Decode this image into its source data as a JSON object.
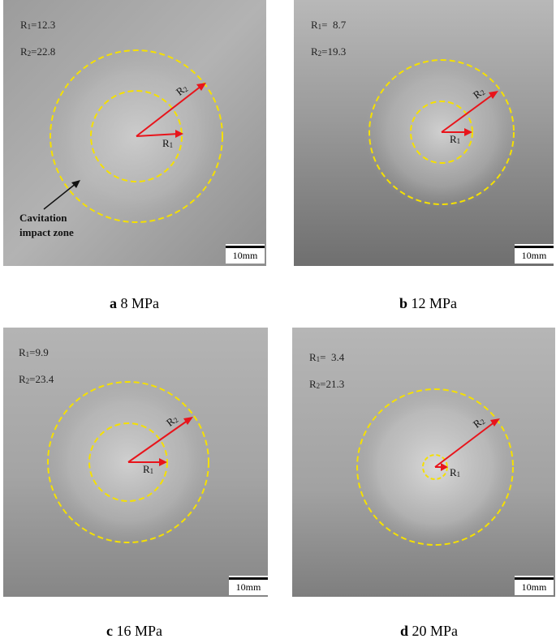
{
  "panels": [
    {
      "id": "a",
      "r1_label": "R",
      "r1_sub": "1",
      "r1_value": "=12.3",
      "r2_label": "R",
      "r2_sub": "2",
      "r2_value": "=22.8",
      "scale": "10mm",
      "caption_letter": "a",
      "caption_text": " 8 MPa",
      "arrow_r1": "R",
      "arrow_r1_sub": "1",
      "arrow_r2": "R",
      "arrow_r2_sub": "2",
      "zone_label_1": "Cavitation",
      "zone_label_2": "impact zone"
    },
    {
      "id": "b",
      "r1_label": "R",
      "r1_sub": "1",
      "r1_value": "=  8.7",
      "r2_label": "R",
      "r2_sub": "2",
      "r2_value": "=19.3",
      "scale": "10mm",
      "caption_letter": "b",
      "caption_text": " 12 MPa",
      "arrow_r1": "R",
      "arrow_r1_sub": "1",
      "arrow_r2": "R",
      "arrow_r2_sub": "2"
    },
    {
      "id": "c",
      "r1_label": "R",
      "r1_sub": "1",
      "r1_value": "=9.9",
      "r2_label": "R",
      "r2_sub": "2",
      "r2_value": "=23.4",
      "scale": "10mm",
      "caption_letter": "c",
      "caption_text": " 16 MPa",
      "arrow_r1": "R",
      "arrow_r1_sub": "1",
      "arrow_r2": "R",
      "arrow_r2_sub": "2"
    },
    {
      "id": "d",
      "r1_label": "R",
      "r1_sub": "1",
      "r1_value": "=  3.4",
      "r2_label": "R",
      "r2_sub": "2",
      "r2_value": "=21.3",
      "scale": "10mm",
      "caption_letter": "d",
      "caption_text": " 20 MPa",
      "arrow_r1": "R",
      "arrow_r1_sub": "1",
      "arrow_r2": "R",
      "arrow_r2_sub": "2"
    }
  ],
  "colors": {
    "circle": "#f5e000",
    "arrow": "#e8141b",
    "scale_bar": "#000000"
  }
}
